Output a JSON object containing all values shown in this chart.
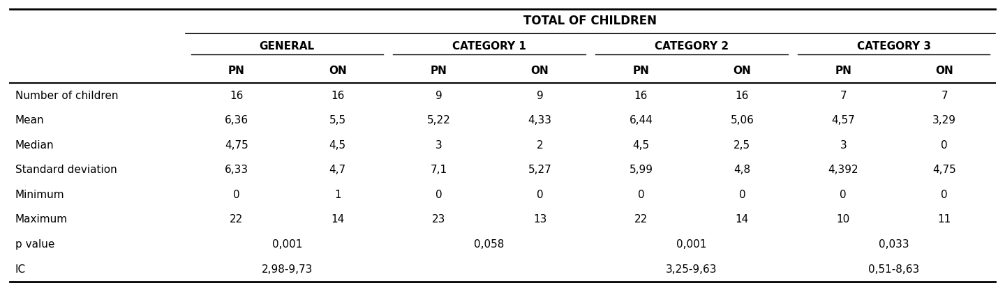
{
  "title": "TOTAL OF CHILDREN",
  "col_groups": [
    "GENERAL",
    "CATEGORY 1",
    "CATEGORY 2",
    "CATEGORY 3"
  ],
  "sub_headers": [
    "PN",
    "ON",
    "PN",
    "ON",
    "PN",
    "ON",
    "PN",
    "ON"
  ],
  "row_labels": [
    "Number of children",
    "Mean",
    "Median",
    "Standard deviation",
    "Minimum",
    "Maximum",
    "p value",
    "IC"
  ],
  "data": [
    [
      "16",
      "16",
      "9",
      "9",
      "16",
      "16",
      "7",
      "7"
    ],
    [
      "6,36",
      "5,5",
      "5,22",
      "4,33",
      "6,44",
      "5,06",
      "4,57",
      "3,29"
    ],
    [
      "4,75",
      "4,5",
      "3",
      "2",
      "4,5",
      "2,5",
      "3",
      "0"
    ],
    [
      "6,33",
      "4,7",
      "7,1",
      "5,27",
      "5,99",
      "4,8",
      "4,392",
      "4,75"
    ],
    [
      "0",
      "1",
      "0",
      "0",
      "0",
      "0",
      "0",
      "0"
    ],
    [
      "22",
      "14",
      "23",
      "13",
      "22",
      "14",
      "10",
      "11"
    ],
    [
      "0,001",
      "",
      "0,058",
      "",
      "0,001",
      "",
      "0,033",
      ""
    ],
    [
      "2,98-9,73",
      "",
      "",
      "",
      "3,25-9,63",
      "",
      "0,51-8,63",
      ""
    ]
  ],
  "pvalue_spans": [
    {
      "cols": [
        0,
        1
      ],
      "text": "0,001"
    },
    {
      "cols": [
        2,
        3
      ],
      "text": "0,058"
    },
    {
      "cols": [
        4,
        5
      ],
      "text": "0,001"
    },
    {
      "cols": [
        6,
        7
      ],
      "text": "0,033"
    }
  ],
  "ic_spans": [
    {
      "cols": [
        0,
        1
      ],
      "text": "2,98-9,73"
    },
    {
      "cols": [
        2,
        3
      ],
      "text": ""
    },
    {
      "cols": [
        4,
        5
      ],
      "text": "3,25-9,63"
    },
    {
      "cols": [
        6,
        7
      ],
      "text": "0,51-8,63"
    }
  ],
  "bg_color": "#ffffff",
  "text_color": "#000000",
  "font_size": 11,
  "header_font_size": 11
}
